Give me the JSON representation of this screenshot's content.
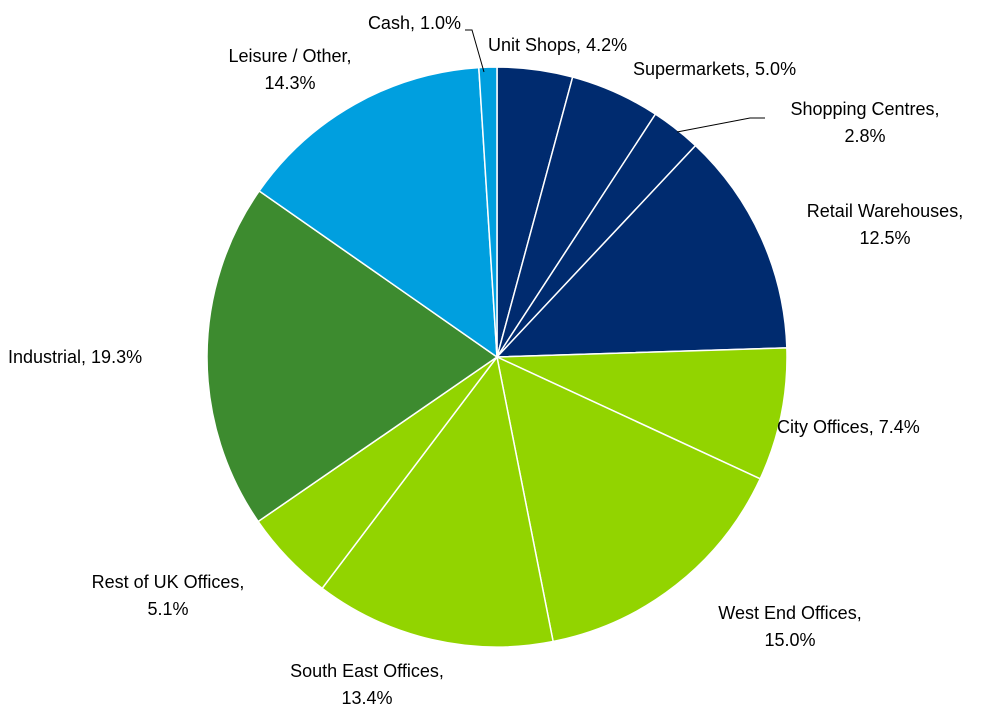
{
  "chart_data": {
    "type": "pie",
    "categories": [
      "Unit Shops,",
      "Supermarkets,",
      "Shopping Centres,",
      "Retail Warehouses,",
      "City Offices,",
      "West End Offices,",
      "South East Offices,",
      "Rest of UK Offices,",
      "Industrial,",
      "Leisure / Other,",
      "Cash,"
    ],
    "values": [
      4.2,
      5.0,
      2.8,
      12.5,
      7.4,
      15.0,
      13.4,
      5.1,
      19.3,
      14.3,
      1.0
    ],
    "value_labels": [
      "4.2%",
      "5.0%",
      "2.8%",
      "12.5%",
      "7.4%",
      "15.0%",
      "13.4%",
      "5.1%",
      "19.3%",
      "14.3%",
      "1.0%"
    ],
    "colors": [
      "#002b6f",
      "#002b6f",
      "#002b6f",
      "#002b6f",
      "#92d400",
      "#92d400",
      "#92d400",
      "#92d400",
      "#3d8b2f",
      "#009fdf",
      "#009fdf"
    ]
  }
}
